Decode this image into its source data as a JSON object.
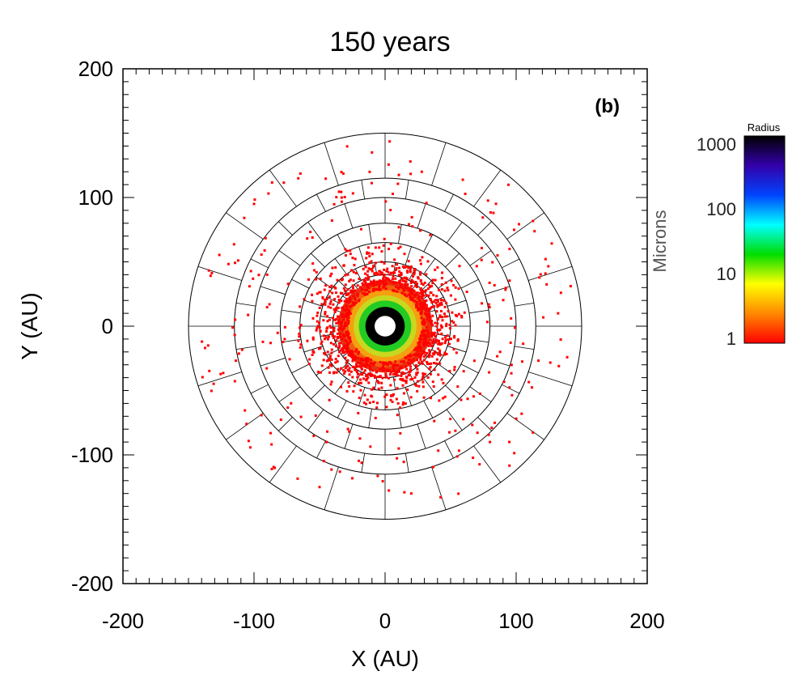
{
  "chart_data": {
    "type": "scatter",
    "title": "150 years",
    "panel_label": "(b)",
    "xlabel": "X (AU)",
    "ylabel": "Y (AU)",
    "xlim": [
      -200,
      200
    ],
    "ylim": [
      -200,
      200
    ],
    "xticks": [
      "-200",
      "-100",
      "0",
      "100",
      "200"
    ],
    "yticks": [
      "-200",
      "-100",
      "0",
      "100",
      "200"
    ],
    "grid": {
      "ring_radii": [
        10,
        15,
        20,
        25,
        30,
        40,
        50,
        65,
        80,
        100,
        115,
        150
      ],
      "sector_count": 20
    },
    "inner_rings": [
      {
        "r_min": 15,
        "r_max": 20,
        "color": "#22cc22"
      },
      {
        "r_min": 20,
        "r_max": 24,
        "color": "#c8d820"
      },
      {
        "r_min": 24,
        "r_max": 28,
        "color": "#f5a010"
      },
      {
        "r_min": 28,
        "r_max": 32,
        "color": "#f06010"
      },
      {
        "r_min": 32,
        "r_max": 36,
        "color": "#e83010"
      }
    ],
    "inner_black_ring": {
      "r_min": 8,
      "r_max": 15
    },
    "particle_color": "#ff0000",
    "particle_samples": [
      {
        "x": 12,
        "y": 40
      },
      {
        "x": -30,
        "y": 55
      },
      {
        "x": 45,
        "y": 20
      },
      {
        "x": 60,
        "y": -35
      },
      {
        "x": -55,
        "y": -20
      },
      {
        "x": 10,
        "y": -60
      },
      {
        "x": -90,
        "y": 40
      },
      {
        "x": 95,
        "y": 60
      },
      {
        "x": -10,
        "y": 135
      },
      {
        "x": 28,
        "y": 120
      },
      {
        "x": -50,
        "y": -125
      },
      {
        "x": 20,
        "y": -130
      },
      {
        "x": 132,
        "y": 10
      },
      {
        "x": -135,
        "y": -15
      },
      {
        "x": 80,
        "y": -90
      },
      {
        "x": -100,
        "y": 95
      }
    ],
    "colorbar": {
      "title": "Radius",
      "unit": "Microns",
      "scale": "log",
      "range": [
        1,
        1000
      ],
      "ticks": [
        "1000",
        "100",
        "10",
        "1"
      ],
      "colors": [
        "#ff0000",
        "#ff8800",
        "#ffff00",
        "#00dd00",
        "#00ffff",
        "#0044ff",
        "#3300aa",
        "#000000"
      ]
    }
  }
}
